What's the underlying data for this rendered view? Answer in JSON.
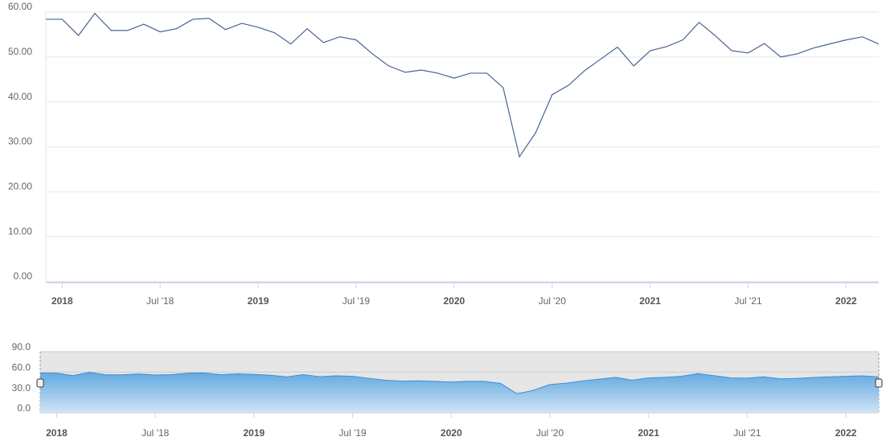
{
  "chart_data": {
    "type": "line",
    "x": [
      "2017-12",
      "2018-01",
      "2018-02",
      "2018-03",
      "2018-04",
      "2018-05",
      "2018-06",
      "2018-07",
      "2018-08",
      "2018-09",
      "2018-10",
      "2018-11",
      "2018-12",
      "2019-01",
      "2019-02",
      "2019-03",
      "2019-04",
      "2019-05",
      "2019-06",
      "2019-07",
      "2019-08",
      "2019-09",
      "2019-10",
      "2019-11",
      "2019-12",
      "2020-01",
      "2020-02",
      "2020-03",
      "2020-04",
      "2020-05",
      "2020-06",
      "2020-07",
      "2020-08",
      "2020-09",
      "2020-10",
      "2020-11",
      "2020-12",
      "2021-01",
      "2021-02",
      "2021-03",
      "2021-04",
      "2021-05",
      "2021-06",
      "2021-07",
      "2021-08",
      "2021-09",
      "2021-10",
      "2021-11",
      "2021-12",
      "2022-01",
      "2022-02",
      "2022-03"
    ],
    "series": [
      {
        "color": "#4a6390",
        "values": [
          58.4,
          58.4,
          54.8,
          59.7,
          55.9,
          55.9,
          57.3,
          55.6,
          56.3,
          58.4,
          58.6,
          56.1,
          57.5,
          56.6,
          55.4,
          52.9,
          56.3,
          53.2,
          54.5,
          53.8,
          50.7,
          48.0,
          46.6,
          47.1,
          46.4,
          45.3,
          46.4,
          46.4,
          43.2,
          27.8,
          33.2,
          41.6,
          43.7,
          47.0,
          49.6,
          52.2,
          48.0,
          51.4,
          52.3,
          53.8,
          57.7,
          54.7,
          51.4,
          50.9,
          53.0,
          50.0,
          50.7,
          52.0,
          52.9,
          53.8,
          54.5,
          52.9
        ]
      }
    ],
    "xlim": [
      "2017-12",
      "2022-03"
    ],
    "xticks": [
      {
        "value": "2018-01",
        "label": "2018"
      },
      {
        "value": "2018-07",
        "label": "Jul '18"
      },
      {
        "value": "2019-01",
        "label": "2019"
      },
      {
        "value": "2019-07",
        "label": "Jul '19"
      },
      {
        "value": "2020-01",
        "label": "2020"
      },
      {
        "value": "2020-07",
        "label": "Jul '20"
      },
      {
        "value": "2021-01",
        "label": "2021"
      },
      {
        "value": "2021-07",
        "label": "Jul '21"
      },
      {
        "value": "2022-01",
        "label": "2022"
      }
    ],
    "ylim": [
      0,
      60
    ],
    "yticks": [
      {
        "value": 0,
        "label": "0.00"
      },
      {
        "value": 10,
        "label": "10.00"
      },
      {
        "value": 20,
        "label": "20.00"
      },
      {
        "value": 30,
        "label": "30.00"
      },
      {
        "value": 40,
        "label": "40.00"
      },
      {
        "value": 50,
        "label": "50.00"
      },
      {
        "value": 60,
        "label": "60.00"
      }
    ],
    "grid": true,
    "navigator": {
      "color": "#3d8fd6",
      "ylim": [
        0,
        90
      ],
      "yticks": [
        {
          "value": 0,
          "label": "0.0"
        },
        {
          "value": 30,
          "label": "30.0"
        },
        {
          "value": 60,
          "label": "60.0"
        },
        {
          "value": 90,
          "label": "90.0"
        }
      ]
    }
  }
}
